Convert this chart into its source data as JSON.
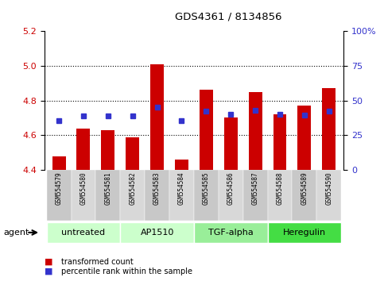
{
  "title": "GDS4361 / 8134856",
  "samples": [
    "GSM554579",
    "GSM554580",
    "GSM554581",
    "GSM554582",
    "GSM554583",
    "GSM554584",
    "GSM554585",
    "GSM554586",
    "GSM554587",
    "GSM554588",
    "GSM554589",
    "GSM554590"
  ],
  "red_values": [
    4.48,
    4.64,
    4.63,
    4.59,
    5.01,
    4.46,
    4.86,
    4.7,
    4.85,
    4.72,
    4.77,
    4.87
  ],
  "blue_values": [
    4.685,
    4.71,
    4.71,
    4.71,
    4.76,
    4.685,
    4.74,
    4.72,
    4.745,
    4.72,
    4.715,
    4.74
  ],
  "ymin": 4.4,
  "ymax": 5.2,
  "yticks_left": [
    4.4,
    4.6,
    4.8,
    5.0,
    5.2
  ],
  "yticks_right": [
    0,
    25,
    50,
    75,
    100
  ],
  "grid_vals": [
    4.6,
    4.8,
    5.0
  ],
  "bar_color": "#cc0000",
  "dot_color": "#3333cc",
  "bar_bottom": 4.4,
  "agent_groups": [
    {
      "label": "untreated",
      "start": 0,
      "end": 3,
      "color": "#ccffcc"
    },
    {
      "label": "AP1510",
      "start": 3,
      "end": 6,
      "color": "#ccffcc"
    },
    {
      "label": "TGF-alpha",
      "start": 6,
      "end": 9,
      "color": "#99ee99"
    },
    {
      "label": "Heregulin",
      "start": 9,
      "end": 12,
      "color": "#44dd44"
    }
  ],
  "legend_items": [
    {
      "label": "transformed count",
      "color": "#cc0000"
    },
    {
      "label": "percentile rank within the sample",
      "color": "#3333cc"
    }
  ],
  "agent_label": "agent",
  "tick_area_bg": "#c0c0c0",
  "left_axis_color": "#cc0000",
  "right_axis_color": "#3333cc",
  "bar_width": 0.55
}
